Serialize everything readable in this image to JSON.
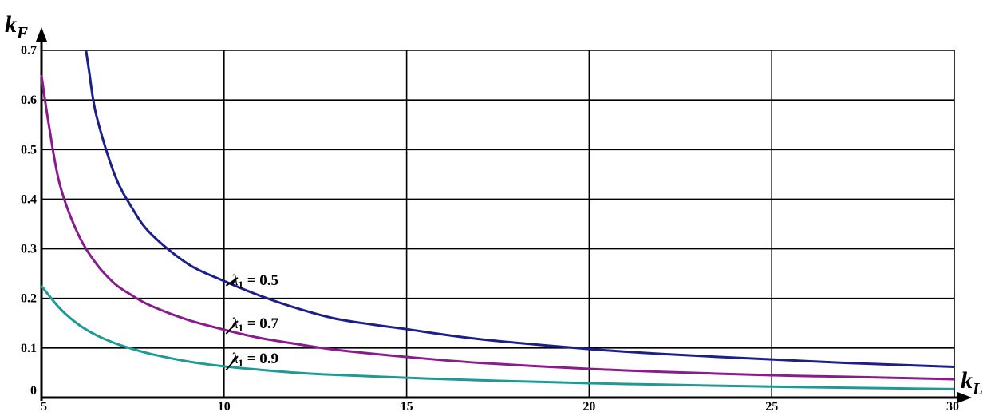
{
  "chart_data": {
    "type": "line",
    "xlabel": {
      "main": "k",
      "sub": "L"
    },
    "ylabel": {
      "main": "k",
      "sub": "F"
    },
    "xlim": [
      5,
      30
    ],
    "ylim": [
      0,
      0.7
    ],
    "xticks": [
      5,
      10,
      15,
      20,
      25,
      30
    ],
    "xtick_labels": [
      "5",
      "10",
      "15",
      "20",
      "25",
      "30"
    ],
    "yticks": [
      0,
      0.1,
      0.2,
      0.3,
      0.4,
      0.5,
      0.6,
      0.7
    ],
    "ytick_labels": [
      "0",
      "0.1",
      "0.2",
      "0.3",
      "0.4",
      "0.5",
      "0.6",
      "0.7"
    ],
    "grid": true,
    "series": [
      {
        "name": "λ₁ = 0.5",
        "label_prefix": "λ",
        "label_sub": "1",
        "label_value": " = 0.5",
        "color": "#1b1f8a",
        "x": [
          6.22,
          6.3,
          6.5,
          7,
          7.5,
          8,
          9,
          10,
          11,
          12,
          13,
          14,
          15,
          17,
          20,
          22,
          25,
          27,
          30
        ],
        "y": [
          0.7,
          0.66,
          0.57,
          0.45,
          0.38,
          0.33,
          0.27,
          0.235,
          0.205,
          0.18,
          0.16,
          0.148,
          0.138,
          0.118,
          0.098,
          0.088,
          0.077,
          0.07,
          0.062
        ]
      },
      {
        "name": "λ₁ = 0.7",
        "label_prefix": "λ",
        "label_sub": "1",
        "label_value": " = 0.7",
        "color": "#8a1a8e",
        "x": [
          5,
          5.2,
          5.5,
          6,
          6.5,
          7,
          7.5,
          8,
          9,
          10,
          11,
          12,
          13,
          15,
          17,
          20,
          22,
          25,
          27,
          30
        ],
        "y": [
          0.65,
          0.55,
          0.43,
          0.33,
          0.27,
          0.23,
          0.205,
          0.185,
          0.157,
          0.137,
          0.12,
          0.108,
          0.097,
          0.082,
          0.07,
          0.058,
          0.052,
          0.045,
          0.042,
          0.037
        ]
      },
      {
        "name": "λ₁ = 0.9",
        "label_prefix": "λ",
        "label_sub": "1",
        "label_value": " = 0.9",
        "color": "#1e9a96",
        "x": [
          5,
          5.5,
          6,
          6.5,
          7,
          7.5,
          8,
          9,
          10,
          11,
          12,
          13,
          15,
          17,
          20,
          22,
          25,
          27,
          30
        ],
        "y": [
          0.225,
          0.18,
          0.148,
          0.126,
          0.11,
          0.098,
          0.088,
          0.073,
          0.063,
          0.056,
          0.05,
          0.046,
          0.04,
          0.035,
          0.029,
          0.026,
          0.022,
          0.02,
          0.017
        ]
      }
    ]
  }
}
